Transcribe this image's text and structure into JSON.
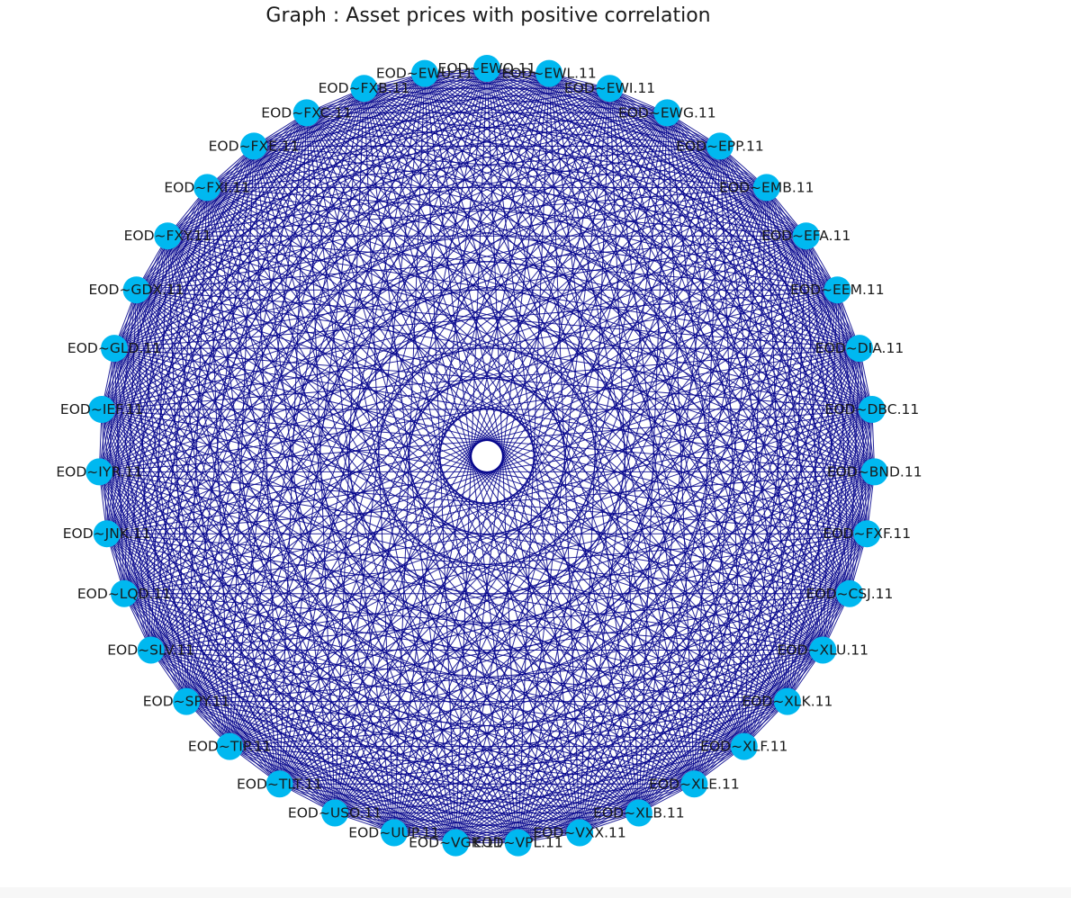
{
  "title": "Graph : Asset prices with positive correlation",
  "colors": {
    "node": "#00b8f0",
    "edge": "#00008b",
    "label": "#1a1a1a",
    "background": "#ffffff"
  },
  "chart_data": {
    "type": "network",
    "layout": "circular",
    "edges": "fully-connected",
    "nodes": [
      "EOD~EWQ.11",
      "EOD~EWL.11",
      "EOD~EWI.11",
      "EOD~EWG.11",
      "EOD~EPP.11",
      "EOD~EMB.11",
      "EOD~EFA.11",
      "EOD~EEM.11",
      "EOD~DIA.11",
      "EOD~DBC.11",
      "EOD~BND.11",
      "EOD~FXF.11",
      "EOD~CSJ.11",
      "EOD~XLU.11",
      "EOD~XLK.11",
      "EOD~XLF.11",
      "EOD~XLE.11",
      "EOD~XLB.11",
      "EOD~VXX.11",
      "EOD~VPL.11",
      "EOD~VGK.11",
      "EOD~UUP.11",
      "EOD~USO.11",
      "EOD~TLT.11",
      "EOD~TIP.11",
      "EOD~SPY.11",
      "EOD~SLV.11",
      "EOD~LQD.11",
      "EOD~JNK.11",
      "EOD~IYR.11",
      "EOD~IEF.11",
      "EOD~GLD.11",
      "EOD~GDX.11",
      "EOD~FXY.11",
      "EOD~FXI.11",
      "EOD~FXE.11",
      "EOD~FXC.11",
      "EOD~FXB.11",
      "EOD~EWU.11"
    ]
  }
}
